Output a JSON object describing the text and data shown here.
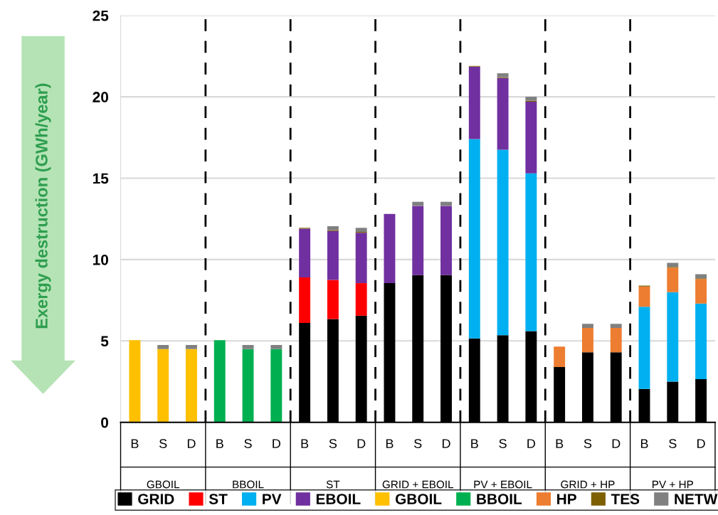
{
  "chart_data": {
    "type": "bar",
    "stacked": true,
    "ylabel": "Exergy destruction (GWh/year)",
    "categories": [
      "B",
      "S",
      "D",
      "B",
      "S",
      "D",
      "B",
      "S",
      "D",
      "B",
      "S",
      "D",
      "B",
      "S",
      "D",
      "B",
      "S",
      "D",
      "B",
      "S",
      "D"
    ],
    "annotations": [
      "GBOIL",
      "BBOIL",
      "ST",
      "GRID + EBOIL",
      "PV + EBOIL",
      "GRID + HP",
      "PV + HP"
    ],
    "ylim": [
      0,
      25
    ],
    "yticks": [
      0,
      5,
      10,
      15,
      20,
      25
    ],
    "grid": "y",
    "legend": "bottom",
    "series": [
      {
        "name": "GRID",
        "color": "#000000",
        "values": [
          null,
          null,
          null,
          null,
          null,
          null,
          6.1,
          6.35,
          6.55,
          8.55,
          9.05,
          9.05,
          5.15,
          5.35,
          5.6,
          3.4,
          4.3,
          4.3,
          2.05,
          2.5,
          2.65
        ]
      },
      {
        "name": "ST",
        "color": "#ff0000",
        "values": [
          null,
          null,
          null,
          null,
          null,
          null,
          2.8,
          2.4,
          2.0,
          null,
          null,
          null,
          null,
          null,
          null,
          null,
          null,
          null,
          null,
          null,
          null
        ]
      },
      {
        "name": "PV",
        "color": "#00b0f0",
        "values": [
          null,
          null,
          null,
          null,
          null,
          null,
          null,
          null,
          null,
          null,
          null,
          null,
          12.25,
          11.4,
          9.7,
          null,
          null,
          null,
          5.05,
          5.5,
          4.65
        ]
      },
      {
        "name": "EBOIL",
        "color": "#7030a0",
        "values": [
          null,
          null,
          null,
          null,
          null,
          null,
          3.0,
          3.0,
          3.1,
          4.25,
          4.25,
          4.25,
          4.45,
          4.4,
          4.4,
          null,
          null,
          null,
          null,
          null,
          null
        ]
      },
      {
        "name": "GBOIL",
        "color": "#ffc000",
        "values": [
          5.05,
          4.5,
          4.5,
          null,
          null,
          null,
          null,
          null,
          null,
          null,
          null,
          null,
          null,
          null,
          null,
          null,
          null,
          null,
          null,
          null,
          null
        ]
      },
      {
        "name": "BBOIL",
        "color": "#00b050",
        "values": [
          null,
          null,
          null,
          5.05,
          4.5,
          4.5,
          null,
          null,
          null,
          null,
          null,
          null,
          null,
          null,
          null,
          null,
          null,
          null,
          null,
          null,
          null
        ]
      },
      {
        "name": "HP",
        "color": "#ed7d31",
        "values": [
          null,
          null,
          null,
          null,
          null,
          null,
          null,
          null,
          null,
          null,
          null,
          null,
          null,
          null,
          null,
          1.25,
          1.5,
          1.5,
          1.25,
          1.5,
          1.5
        ]
      },
      {
        "name": "TES",
        "color": "#7f6000",
        "values": [
          null,
          null,
          null,
          null,
          null,
          null,
          0.05,
          0.05,
          0.05,
          null,
          null,
          null,
          0.05,
          0.05,
          0.05,
          null,
          null,
          null,
          0.05,
          0.05,
          0.05
        ]
      },
      {
        "name": "NETW",
        "color": "#808080",
        "values": [
          null,
          0.25,
          0.25,
          null,
          0.25,
          0.25,
          null,
          0.25,
          0.25,
          null,
          0.25,
          0.25,
          null,
          0.25,
          0.25,
          null,
          0.25,
          0.25,
          null,
          0.25,
          0.25
        ]
      }
    ]
  }
}
